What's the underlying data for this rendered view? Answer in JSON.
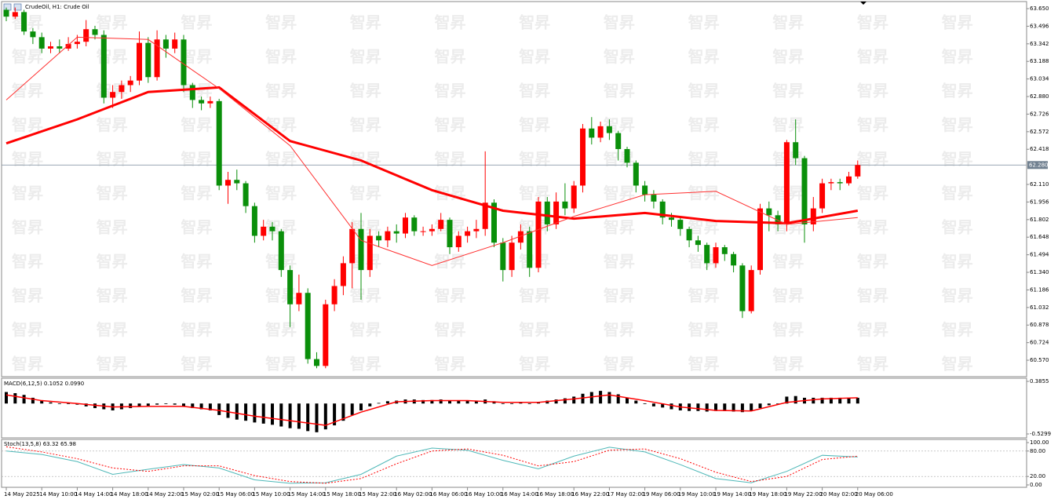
{
  "chart_data": [
    {
      "type": "candlestick",
      "title": "CrudeOil, H1:  Crude Oil",
      "watermark": "智昇",
      "up_color": "#ff0000",
      "down_color": "#0a8f0a",
      "categories": [
        "14 May 2025",
        null,
        null,
        null,
        "14 May 10:00",
        null,
        null,
        null,
        "14 May 14:00",
        null,
        null,
        null,
        "14 May 18:00",
        null,
        null,
        null,
        "14 May 22:00",
        null,
        null,
        null,
        "15 May 02:00",
        null,
        null,
        null,
        "15 May 06:00",
        null,
        null,
        null,
        "15 May 10:00",
        null,
        null,
        null,
        "15 May 14:00",
        null,
        null,
        null,
        "15 May 18:00",
        null,
        null,
        null,
        "15 May 22:00",
        null,
        null,
        null,
        "16 May 02:00",
        null,
        null,
        null,
        "16 May 06:00",
        null,
        null,
        null,
        "16 May 10:00",
        null,
        null,
        null,
        "16 May 14:00",
        null,
        null,
        null,
        "16 May 18:00",
        null,
        null,
        null,
        "16 May 22:00",
        null,
        null,
        null,
        "17 May 02:00",
        null,
        null,
        null,
        "19 May 06:00",
        null,
        null,
        null,
        "19 May 10:00",
        null,
        null,
        null,
        "19 May 14:00",
        null,
        null,
        null,
        "19 May 18:00",
        null,
        null,
        null,
        "19 May 22:00",
        null,
        null,
        null,
        "20 May 02:00",
        null,
        null,
        null,
        "20 May 06:00"
      ],
      "open": [
        63.64,
        63.58,
        63.62,
        63.45,
        63.4,
        63.3,
        63.32,
        63.3,
        63.34,
        63.36,
        63.47,
        63.42,
        62.87,
        62.92,
        62.98,
        63.02,
        63.35,
        63.05,
        63.38,
        63.3,
        63.38,
        62.98,
        62.85,
        62.82,
        62.84,
        62.1,
        62.15,
        62.12,
        61.92,
        61.66,
        61.74,
        61.7,
        61.36,
        61.06,
        61.16,
        60.58,
        60.52,
        61.06,
        61.22,
        61.42,
        61.72,
        61.36,
        61.66,
        61.62,
        61.7,
        61.68,
        61.82,
        61.7,
        61.7,
        61.72,
        61.8,
        61.56,
        61.66,
        61.7,
        61.72,
        61.95,
        61.6,
        61.36,
        61.6,
        61.7,
        61.38,
        61.96,
        61.76,
        61.96,
        61.9,
        62.1,
        62.6,
        62.52,
        62.62,
        62.56,
        62.42,
        62.3,
        62.1,
        62.02,
        61.96,
        61.82,
        61.8,
        61.72,
        61.62,
        61.58,
        61.42,
        61.56,
        61.5,
        61.4,
        61.0,
        61.36,
        61.9,
        61.84,
        61.76,
        62.48,
        62.34,
        61.76,
        61.9,
        62.12,
        62.13,
        62.12,
        62.18
      ],
      "high": [
        63.66,
        63.66,
        63.64,
        63.48,
        63.44,
        63.36,
        63.38,
        63.4,
        63.42,
        63.55,
        63.5,
        63.46,
        62.98,
        63.02,
        63.06,
        63.45,
        63.4,
        63.46,
        63.42,
        63.44,
        63.42,
        63.0,
        62.88,
        62.88,
        62.86,
        62.22,
        62.24,
        62.14,
        61.95,
        61.8,
        61.78,
        61.72,
        61.4,
        61.32,
        61.2,
        60.64,
        61.1,
        61.28,
        61.48,
        61.78,
        61.86,
        61.72,
        61.7,
        61.74,
        61.76,
        61.86,
        61.84,
        61.74,
        61.76,
        61.86,
        61.82,
        61.7,
        61.74,
        61.8,
        62.4,
        61.98,
        61.64,
        61.66,
        61.76,
        61.74,
        62.0,
        62.0,
        62.04,
        62.12,
        62.14,
        62.64,
        62.7,
        62.66,
        62.68,
        62.58,
        62.44,
        62.32,
        62.14,
        62.06,
        61.98,
        61.86,
        61.82,
        61.74,
        61.66,
        61.6,
        61.6,
        61.58,
        61.52,
        61.42,
        61.4,
        61.94,
        61.96,
        61.88,
        62.5,
        62.68,
        62.36,
        62.0,
        62.16,
        62.16,
        62.16,
        62.22,
        62.32
      ],
      "low": [
        63.54,
        63.56,
        63.42,
        63.34,
        63.26,
        63.26,
        63.26,
        63.28,
        63.3,
        63.32,
        63.38,
        62.82,
        62.78,
        62.86,
        62.92,
        62.98,
        63.0,
        63.02,
        63.22,
        63.26,
        62.92,
        62.78,
        62.76,
        62.78,
        62.06,
        61.94,
        62.06,
        61.86,
        61.6,
        61.62,
        61.62,
        61.3,
        60.86,
        61.0,
        60.54,
        60.5,
        60.5,
        61.0,
        61.14,
        61.2,
        61.1,
        61.3,
        61.56,
        61.56,
        61.6,
        61.64,
        61.66,
        61.66,
        61.66,
        61.7,
        61.5,
        61.52,
        61.6,
        61.64,
        61.66,
        61.56,
        61.26,
        61.3,
        61.54,
        61.3,
        61.34,
        61.7,
        61.72,
        61.84,
        61.86,
        62.04,
        62.46,
        62.48,
        62.5,
        62.32,
        62.26,
        62.04,
        61.96,
        61.9,
        61.76,
        61.74,
        61.66,
        61.56,
        61.52,
        61.36,
        61.38,
        61.44,
        61.34,
        60.94,
        60.98,
        61.32,
        61.7,
        61.7,
        61.7,
        62.28,
        61.6,
        61.7,
        61.86,
        62.06,
        62.06,
        62.1,
        62.16
      ],
      "close": [
        63.58,
        63.62,
        63.45,
        63.4,
        63.3,
        63.32,
        63.3,
        63.34,
        63.36,
        63.47,
        63.42,
        62.87,
        62.92,
        62.98,
        63.02,
        63.35,
        63.05,
        63.38,
        63.3,
        63.38,
        62.98,
        62.85,
        62.82,
        62.84,
        62.1,
        62.15,
        62.12,
        61.92,
        61.66,
        61.74,
        61.7,
        61.36,
        61.06,
        61.16,
        60.58,
        60.52,
        61.06,
        61.22,
        61.42,
        61.72,
        61.36,
        61.66,
        61.62,
        61.7,
        61.68,
        61.82,
        61.7,
        61.7,
        61.72,
        61.8,
        61.56,
        61.66,
        61.7,
        61.72,
        61.95,
        61.6,
        61.36,
        61.6,
        61.7,
        61.38,
        61.96,
        61.76,
        61.96,
        61.9,
        62.1,
        62.6,
        62.52,
        62.62,
        62.56,
        62.42,
        62.3,
        62.1,
        62.02,
        61.96,
        61.82,
        61.8,
        61.72,
        61.62,
        61.58,
        61.42,
        61.56,
        61.5,
        61.4,
        61.0,
        61.36,
        61.9,
        61.84,
        61.76,
        62.48,
        62.34,
        61.76,
        61.9,
        62.12,
        62.13,
        62.12,
        62.18,
        62.28
      ],
      "lines": [
        {
          "color": "#ff0000",
          "width": 3,
          "x": [
            0,
            8,
            16,
            24,
            32,
            40,
            48,
            56,
            64,
            72,
            80,
            88,
            96
          ],
          "values": [
            62.47,
            62.68,
            62.92,
            62.96,
            62.49,
            62.32,
            62.06,
            61.88,
            61.81,
            61.86,
            61.79,
            61.77,
            61.88
          ]
        },
        {
          "color": "#ff3030",
          "width": 1,
          "x": [
            0,
            8,
            16,
            24,
            32,
            40,
            48,
            56,
            64,
            72,
            80,
            88,
            96
          ],
          "values": [
            62.85,
            63.4,
            63.38,
            62.95,
            62.45,
            61.62,
            61.4,
            61.6,
            61.83,
            62.02,
            62.05,
            61.76,
            61.82
          ]
        }
      ],
      "current_price": {
        "value": 62.28,
        "label": "62.280"
      },
      "ylim": [
        60.426,
        63.712
      ],
      "yticks": [
        {
          "value": 63.65,
          "label": "63.650"
        },
        {
          "value": 63.496,
          "label": "63.496"
        },
        {
          "value": 63.342,
          "label": "63.342"
        },
        {
          "value": 63.188,
          "label": "63.188"
        },
        {
          "value": 63.034,
          "label": "63.034"
        },
        {
          "value": 62.88,
          "label": "62.880"
        },
        {
          "value": 62.726,
          "label": "62.726"
        },
        {
          "value": 62.572,
          "label": "62.572"
        },
        {
          "value": 62.418,
          "label": "62.418"
        },
        {
          "value": 62.11,
          "label": "62.110"
        },
        {
          "value": 61.956,
          "label": "61.956"
        },
        {
          "value": 61.802,
          "label": "61.802"
        },
        {
          "value": 61.648,
          "label": "61.648"
        },
        {
          "value": 61.494,
          "label": "61.494"
        },
        {
          "value": 61.34,
          "label": "61.340"
        },
        {
          "value": 61.186,
          "label": "61.186"
        },
        {
          "value": 61.032,
          "label": "61.032"
        },
        {
          "value": 60.878,
          "label": "60.878"
        },
        {
          "value": 60.724,
          "label": "60.724"
        },
        {
          "value": 60.57,
          "label": "60.570"
        }
      ]
    },
    {
      "type": "macd",
      "title": "MACD(6,12,5) 0.1052 0.0990",
      "color": "#000000",
      "values": [
        0.2,
        0.18,
        0.15,
        0.1,
        0.05,
        0.02,
        0,
        -0.01,
        -0.02,
        -0.05,
        -0.08,
        -0.1,
        -0.12,
        -0.1,
        -0.08,
        -0.05,
        -0.04,
        -0.02,
        0,
        -0.02,
        -0.05,
        -0.08,
        -0.1,
        -0.12,
        -0.2,
        -0.25,
        -0.28,
        -0.3,
        -0.33,
        -0.35,
        -0.37,
        -0.4,
        -0.43,
        -0.44,
        -0.48,
        -0.5,
        -0.45,
        -0.38,
        -0.3,
        -0.2,
        -0.12,
        -0.05,
        0.01,
        0.04,
        0.05,
        0.07,
        0.07,
        0.06,
        0.06,
        0.07,
        0.05,
        0.05,
        0.05,
        0.05,
        0.07,
        0.04,
        0,
        -0.01,
        0.01,
        0,
        0.03,
        0.05,
        0.07,
        0.09,
        0.12,
        0.17,
        0.2,
        0.22,
        0.2,
        0.16,
        0.1,
        0.05,
        0,
        -0.05,
        -0.07,
        -0.1,
        -0.12,
        -0.13,
        -0.13,
        -0.14,
        -0.13,
        -0.13,
        -0.14,
        -0.15,
        -0.13,
        -0.08,
        -0.03,
        0,
        0.12,
        0.13,
        0.1,
        0.1,
        0.1,
        0.1,
        0.1,
        0.1,
        0.1
      ],
      "signal": {
        "color": "#ff0000",
        "x": [
          0,
          4,
          8,
          12,
          16,
          20,
          24,
          28,
          32,
          36,
          40,
          44,
          48,
          52,
          56,
          60,
          64,
          68,
          72,
          76,
          80,
          84,
          88,
          92,
          96
        ],
        "values": [
          0.15,
          0.05,
          0,
          -0.06,
          -0.05,
          -0.05,
          -0.12,
          -0.22,
          -0.3,
          -0.38,
          -0.15,
          0.03,
          0.05,
          0.05,
          0.02,
          0.02,
          0.08,
          0.15,
          0.05,
          -0.06,
          -0.12,
          -0.13,
          0.02,
          0.08,
          0.1
        ]
      },
      "ylim": [
        -0.598,
        0.44
      ],
      "yticks": [
        0.3855,
        -0.5299
      ]
    },
    {
      "type": "stochastic",
      "title": "Stoch(13,5,8) 63.32 65.98",
      "ylim": [
        -5.6,
        107.4
      ],
      "yticks": [
        {
          "value": 100,
          "label": "100.00"
        },
        {
          "value": 80,
          "label": "80.00"
        },
        {
          "value": 20,
          "label": "20.00"
        },
        {
          "value": 0,
          "label": "0.00"
        }
      ],
      "levels": [
        80,
        20
      ],
      "series": [
        {
          "color": "#4fb8b8",
          "dashed": false,
          "x": [
            0,
            4,
            8,
            12,
            16,
            20,
            24,
            28,
            32,
            36,
            40,
            44,
            48,
            52,
            56,
            60,
            64,
            68,
            72,
            76,
            80,
            84,
            88,
            92,
            96
          ],
          "values": [
            80,
            72,
            55,
            25,
            37,
            48,
            40,
            12,
            4,
            5,
            25,
            68,
            87,
            82,
            58,
            38,
            68,
            89,
            78,
            48,
            15,
            5,
            32,
            70,
            66
          ]
        },
        {
          "color": "#ff0000",
          "dashed": true,
          "x": [
            0,
            4,
            8,
            12,
            16,
            20,
            24,
            28,
            32,
            36,
            40,
            44,
            48,
            52,
            56,
            60,
            64,
            68,
            72,
            76,
            80,
            84,
            88,
            92,
            96
          ],
          "values": [
            90,
            78,
            62,
            40,
            32,
            45,
            45,
            22,
            8,
            4,
            15,
            50,
            80,
            85,
            70,
            45,
            55,
            82,
            85,
            62,
            30,
            8,
            20,
            60,
            68
          ]
        }
      ]
    }
  ]
}
